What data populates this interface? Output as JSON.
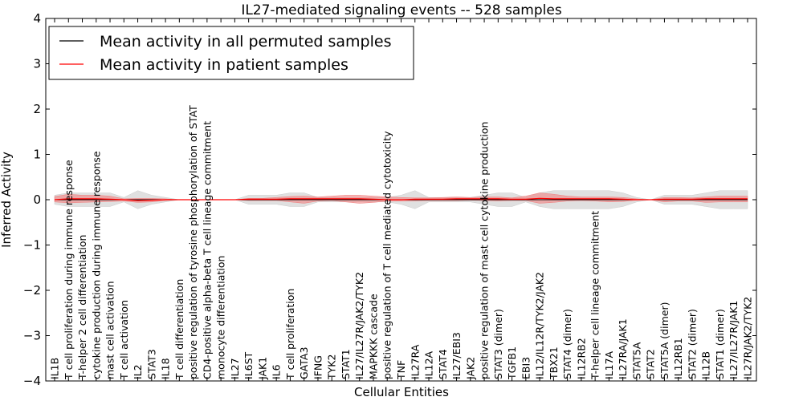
{
  "chart_data": {
    "type": "line",
    "title": "IL27-mediated signaling events -- 528 samples",
    "xlabel": "Cellular Entities",
    "ylabel": "Inferred Activity",
    "ylim": [
      -4,
      4
    ],
    "yticks": [
      4,
      3,
      2,
      1,
      0,
      -1,
      -2,
      -3,
      -4
    ],
    "grid": false,
    "legend_position": "top-left",
    "colors": {
      "permuted": "#000000",
      "patient": "#ff0000",
      "patient_band": "#f08080",
      "permuted_band": "#cccccc"
    },
    "categories": [
      "IL1B",
      "T cell proliferation during immune response",
      "T-helper 2 cell differentiation",
      "cytokine production during immune response",
      "mast cell activation",
      "T cell activation",
      "IL2",
      "STAT3",
      "IL18",
      "T cell differentiation",
      "positive regulation of tyrosine phosphorylation of STAT",
      "CD4-positive alpha-beta T cell lineage commitment",
      "monocyte differentiation",
      "IL27",
      "IL6ST",
      "JAK1",
      "IL6",
      "T cell proliferation",
      "GATA3",
      "IFNG",
      "TYK2",
      "STAT1",
      "IL27/IL27R/JAK2/TYK2",
      "MAPKKK cascade",
      "positive regulation of T cell mediated cytotoxicity",
      "TNF",
      "IL27RA",
      "IL12A",
      "STAT4",
      "IL27/EBI3",
      "JAK2",
      "positive regulation of mast cell cytokine production",
      "STAT3 (dimer)",
      "TGFB1",
      "EBI3",
      "IL12/IL12R/TYK2/JAK2",
      "TBX21",
      "STAT4 (dimer)",
      "IL12RB2",
      "T-helper cell lineage commitment",
      "IL17A",
      "IL27RA/JAK1",
      "STAT5A",
      "STAT2",
      "STAT5A (dimer)",
      "IL12RB1",
      "STAT2 (dimer)",
      "IL12B",
      "STAT1 (dimer)",
      "IL27/IL27R/JAK1",
      "IL27R/JAK2/TYK2"
    ],
    "series": [
      {
        "name": "Mean activity in all permuted samples",
        "values": [
          0.0,
          0.0,
          0.0,
          0.0,
          0.0,
          0.0,
          0.0,
          0.0,
          0.0,
          0.0,
          0.0,
          0.0,
          0.0,
          0.0,
          0.0,
          0.0,
          0.0,
          0.0,
          0.0,
          0.0,
          0.0,
          0.0,
          0.0,
          0.0,
          0.0,
          0.0,
          0.0,
          0.0,
          0.0,
          0.0,
          0.0,
          0.0,
          0.0,
          0.0,
          0.0,
          0.0,
          0.0,
          0.0,
          0.0,
          0.0,
          0.0,
          0.0,
          0.0,
          0.0,
          0.0,
          0.0,
          0.0,
          0.0,
          0.0,
          0.0,
          0.0
        ],
        "band_low": [
          -0.1,
          -0.15,
          -0.15,
          -0.15,
          -0.15,
          -0.05,
          -0.2,
          -0.1,
          -0.05,
          0.0,
          0.0,
          0.0,
          0.0,
          0.0,
          -0.1,
          -0.1,
          -0.1,
          -0.15,
          -0.15,
          -0.05,
          -0.05,
          -0.05,
          -0.05,
          -0.05,
          -0.05,
          -0.1,
          -0.2,
          -0.05,
          -0.05,
          -0.05,
          -0.05,
          -0.1,
          -0.15,
          -0.15,
          -0.05,
          -0.15,
          -0.2,
          -0.2,
          -0.2,
          -0.2,
          -0.2,
          -0.15,
          -0.05,
          0.0,
          -0.1,
          -0.1,
          -0.1,
          -0.15,
          -0.2,
          -0.2,
          -0.2
        ],
        "band_high": [
          0.1,
          0.15,
          0.15,
          0.15,
          0.15,
          0.05,
          0.2,
          0.1,
          0.05,
          0.0,
          0.0,
          0.0,
          0.0,
          0.0,
          0.1,
          0.1,
          0.1,
          0.15,
          0.15,
          0.05,
          0.05,
          0.05,
          0.05,
          0.05,
          0.05,
          0.1,
          0.2,
          0.05,
          0.05,
          0.05,
          0.05,
          0.1,
          0.15,
          0.15,
          0.05,
          0.15,
          0.2,
          0.2,
          0.2,
          0.2,
          0.2,
          0.15,
          0.05,
          0.0,
          0.1,
          0.1,
          0.1,
          0.15,
          0.2,
          0.2,
          0.2
        ]
      },
      {
        "name": "Mean activity in patient samples",
        "values": [
          0.0,
          0.02,
          0.02,
          0.02,
          0.01,
          0.0,
          -0.02,
          -0.01,
          0.0,
          0.0,
          0.0,
          0.0,
          0.0,
          0.0,
          0.01,
          0.01,
          0.01,
          0.02,
          0.02,
          0.02,
          0.02,
          0.02,
          0.02,
          0.01,
          0.0,
          0.0,
          0.01,
          0.01,
          0.01,
          0.02,
          0.02,
          0.02,
          0.02,
          0.01,
          0.01,
          0.03,
          0.02,
          0.02,
          0.02,
          0.02,
          0.02,
          0.01,
          0.0,
          0.0,
          0.01,
          0.01,
          0.01,
          0.02,
          0.02,
          0.02,
          0.02
        ],
        "band_low": [
          -0.05,
          -0.07,
          -0.06,
          -0.05,
          -0.04,
          -0.03,
          -0.06,
          -0.05,
          -0.02,
          0.0,
          0.0,
          0.0,
          0.0,
          0.0,
          -0.02,
          -0.02,
          -0.02,
          -0.05,
          -0.08,
          -0.03,
          -0.02,
          -0.05,
          -0.08,
          -0.06,
          -0.03,
          -0.03,
          -0.03,
          -0.02,
          -0.02,
          -0.02,
          -0.01,
          -0.02,
          -0.03,
          -0.02,
          -0.02,
          -0.08,
          -0.06,
          -0.03,
          -0.02,
          -0.03,
          -0.05,
          -0.04,
          -0.01,
          0.0,
          -0.05,
          -0.03,
          -0.03,
          -0.06,
          -0.05,
          -0.05,
          -0.05
        ],
        "band_high": [
          0.07,
          0.12,
          0.1,
          0.1,
          0.08,
          0.02,
          0.03,
          0.03,
          0.02,
          0.0,
          0.0,
          0.0,
          0.0,
          0.0,
          0.03,
          0.03,
          0.05,
          0.07,
          0.08,
          0.06,
          0.08,
          0.1,
          0.1,
          0.08,
          0.06,
          0.05,
          0.04,
          0.04,
          0.05,
          0.06,
          0.05,
          0.06,
          0.06,
          0.04,
          0.08,
          0.15,
          0.12,
          0.08,
          0.06,
          0.06,
          0.06,
          0.05,
          0.02,
          0.0,
          0.05,
          0.05,
          0.04,
          0.06,
          0.08,
          0.08,
          0.08
        ]
      }
    ]
  }
}
